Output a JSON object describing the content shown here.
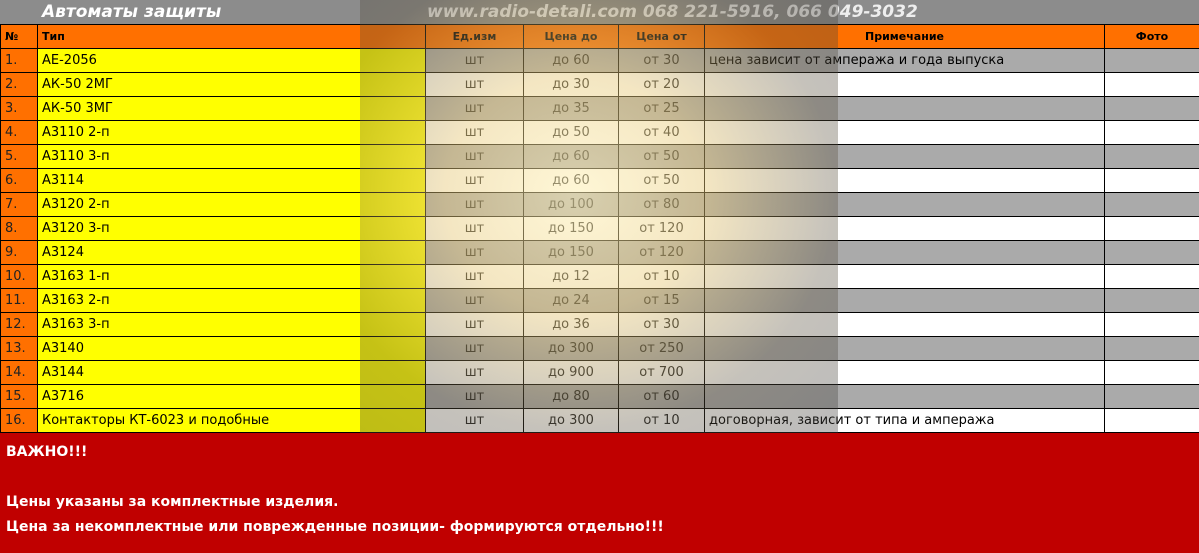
{
  "header": {
    "title": "Автоматы защиты",
    "site": "www.radio-detali.com 068 221-5916, 066 049-3032"
  },
  "columns": [
    "№",
    "Тип",
    "Ед.изм",
    "Цена до",
    "Цена от",
    "Примечание",
    "Фото"
  ],
  "rows": [
    {
      "num": "1.",
      "type": "АЕ-2056",
      "unit": "шт",
      "max": "до 60",
      "min": "от 30",
      "note": "цена зависит от ампеража и года выпуска",
      "photo": ""
    },
    {
      "num": "2.",
      "type": "АК-50 2МГ",
      "unit": "шт",
      "max": "до 30",
      "min": "от 20",
      "note": "",
      "photo": ""
    },
    {
      "num": "3.",
      "type": "АК-50 3МГ",
      "unit": "шт",
      "max": "до 35",
      "min": "от 25",
      "note": "",
      "photo": ""
    },
    {
      "num": "4.",
      "type": "А3110 2-п",
      "unit": "шт",
      "max": "до 50",
      "min": "от 40",
      "note": "",
      "photo": ""
    },
    {
      "num": "5.",
      "type": "А3110 3-п",
      "unit": "шт",
      "max": "до 60",
      "min": "от 50",
      "note": "",
      "photo": ""
    },
    {
      "num": "6.",
      "type": "А3114",
      "unit": "шт",
      "max": "до 60",
      "min": "от 50",
      "note": "",
      "photo": ""
    },
    {
      "num": "7.",
      "type": "А3120 2-п",
      "unit": "шт",
      "max": "до 100",
      "min": "от 80",
      "note": "",
      "photo": ""
    },
    {
      "num": "8.",
      "type": "А3120 3-п",
      "unit": "шт",
      "max": "до 150",
      "min": "от 120",
      "note": "",
      "photo": ""
    },
    {
      "num": "9.",
      "type": "А3124",
      "unit": "шт",
      "max": "до 150",
      "min": "от 120",
      "note": "",
      "photo": ""
    },
    {
      "num": "10.",
      "type": "А3163 1-п",
      "unit": "шт",
      "max": "до 12",
      "min": "от 10",
      "note": "",
      "photo": ""
    },
    {
      "num": "11.",
      "type": "А3163 2-п",
      "unit": "шт",
      "max": "до 24",
      "min": "от 15",
      "note": "",
      "photo": ""
    },
    {
      "num": "12.",
      "type": "А3163 3-п",
      "unit": "шт",
      "max": "до 36",
      "min": "от 30",
      "note": "",
      "photo": ""
    },
    {
      "num": "13.",
      "type": "А3140",
      "unit": "шт",
      "max": "до 300",
      "min": "от 250",
      "note": "",
      "photo": ""
    },
    {
      "num": "14.",
      "type": "А3144",
      "unit": "шт",
      "max": "до 900",
      "min": "от 700",
      "note": "",
      "photo": ""
    },
    {
      "num": "15.",
      "type": "А3716",
      "unit": "шт",
      "max": "до 80",
      "min": "от 60",
      "note": "",
      "photo": ""
    },
    {
      "num": "16.",
      "type": "Контакторы КТ-6023 и подобные",
      "unit": "шт",
      "max": "до 300",
      "min": "от 10",
      "note": "договорная, зависит от типа и ампеража",
      "photo": ""
    }
  ],
  "notice": {
    "heading": "ВАЖНО!!!",
    "line1": "Цены указаны за комплектные изделия.",
    "line2": "Цена за некомплектные или поврежденные позиции- формируются отдельно!!!"
  },
  "colors": {
    "header_orange": "#ff7000",
    "type_yellow": "#ffff00",
    "row_grey": "#aaaaaa",
    "notice_red": "#c00000"
  }
}
